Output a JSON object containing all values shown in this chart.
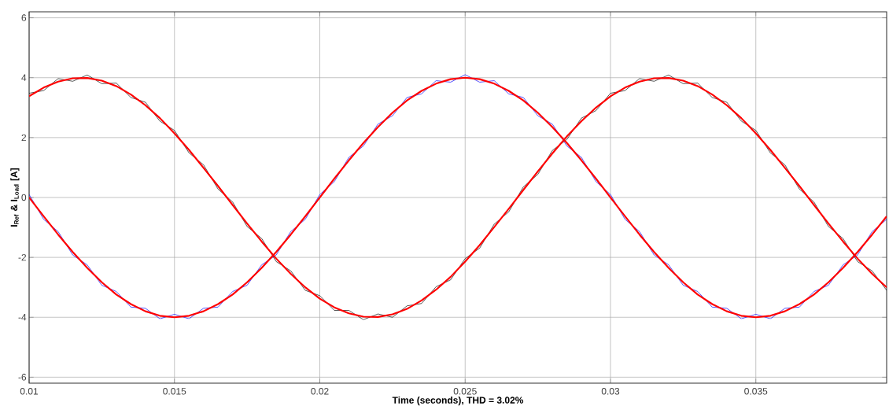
{
  "chart_data": {
    "type": "line",
    "xlabel": "Time (seconds), THD = 3.02%",
    "ylabel": "I$_{Ref}$ & I$_{Load}$ [A]",
    "x": [
      0.01,
      0.0105,
      0.011,
      0.0115,
      0.012,
      0.0125,
      0.013,
      0.0135,
      0.014,
      0.0145,
      0.015,
      0.0155,
      0.016,
      0.0165,
      0.017,
      0.0175,
      0.018,
      0.0185,
      0.019,
      0.0195,
      0.02,
      0.0205,
      0.021,
      0.0215,
      0.022,
      0.0225,
      0.023,
      0.0235,
      0.024,
      0.0245,
      0.025,
      0.0255,
      0.026,
      0.0265,
      0.027,
      0.0275,
      0.028,
      0.0285,
      0.029,
      0.0295,
      0.03,
      0.0305,
      0.031,
      0.0315,
      0.032,
      0.0325,
      0.033,
      0.0335,
      0.034,
      0.0345,
      0.035,
      0.0355,
      0.036,
      0.0365,
      0.037,
      0.0375,
      0.038,
      0.0385,
      0.039,
      0.0395
    ],
    "series": [
      {
        "color": "#000000",
        "values": [
          3.48,
          3.57,
          3.97,
          3.88,
          4.09,
          3.8,
          3.82,
          3.34,
          3.18,
          2.55,
          2.24,
          1.49,
          1.09,
          0.28,
          -0.15,
          -0.97,
          -1.37,
          -2.14,
          -2.45,
          -3.1,
          -3.28,
          -3.77,
          -3.77,
          -4.08,
          -3.89,
          -4.0,
          -3.62,
          -3.54,
          -2.98,
          -2.75,
          -2.04,
          -1.69,
          -0.89,
          -0.48,
          0.35,
          0.77,
          1.57,
          1.94,
          2.65,
          2.9,
          3.48,
          3.57,
          3.97,
          3.88,
          4.09,
          3.8,
          3.82,
          3.34,
          3.18,
          2.55,
          2.24,
          1.49,
          1.09,
          0.28,
          -0.15,
          -0.97,
          -1.37,
          -2.14,
          -2.45,
          -3.1
        ]
      },
      {
        "color": "#0000ff",
        "values": [
          0.1,
          -0.73,
          -1.14,
          -1.92,
          -2.25,
          -2.93,
          -3.14,
          -3.66,
          -3.7,
          -4.05,
          -3.9,
          -4.05,
          -3.7,
          -3.66,
          -3.14,
          -2.93,
          -2.25,
          -1.92,
          -1.14,
          -0.73,
          0.1,
          0.53,
          1.34,
          1.72,
          2.45,
          2.73,
          3.34,
          3.46,
          3.9,
          3.85,
          4.1,
          3.85,
          3.9,
          3.46,
          3.34,
          2.73,
          2.45,
          1.72,
          1.34,
          0.53,
          0.1,
          -0.73,
          -1.14,
          -1.92,
          -2.25,
          -2.93,
          -3.14,
          -3.66,
          -3.7,
          -4.05,
          -3.9,
          -4.05,
          -3.7,
          -3.66,
          -3.14,
          -2.93,
          -2.25,
          -1.92,
          -1.14,
          -0.73
        ]
      },
      {
        "color": "#ff0000",
        "values": [
          3.38,
          3.67,
          3.87,
          3.98,
          3.99,
          3.9,
          3.72,
          3.44,
          3.08,
          2.65,
          2.14,
          1.59,
          0.99,
          0.38,
          -0.25,
          -0.87,
          -1.47,
          -2.04,
          -2.55,
          -3.0,
          -3.38,
          -3.67,
          -3.87,
          -3.98,
          -3.99,
          -3.9,
          -3.72,
          -3.44,
          -3.08,
          -2.65,
          -2.14,
          -1.59,
          -0.99,
          -0.38,
          0.25,
          0.87,
          1.47,
          2.04,
          2.55,
          3.0,
          3.38,
          3.67,
          3.87,
          3.98,
          3.99,
          3.9,
          3.72,
          3.44,
          3.08,
          2.65,
          2.14,
          1.59,
          0.99,
          0.38,
          -0.25,
          -0.87,
          -1.47,
          -2.04,
          -2.55,
          -3.0
        ]
      },
      {
        "color": "#ff0000",
        "values": [
          0,
          -0.63,
          -1.24,
          -1.82,
          -2.35,
          -2.83,
          -3.24,
          -3.56,
          -3.8,
          -3.95,
          -4,
          -3.95,
          -3.8,
          -3.56,
          -3.24,
          -2.83,
          -2.35,
          -1.82,
          -1.24,
          -0.63,
          0,
          0.63,
          1.24,
          1.82,
          2.35,
          2.83,
          3.24,
          3.56,
          3.8,
          3.95,
          4,
          3.95,
          3.8,
          3.56,
          3.24,
          2.83,
          2.35,
          1.82,
          1.24,
          0.63,
          0,
          -0.63,
          -1.24,
          -1.82,
          -2.35,
          -2.83,
          -3.24,
          -3.56,
          -3.8,
          -3.95,
          -4,
          -3.95,
          -3.8,
          -3.56,
          -3.24,
          -2.83,
          -2.35,
          -1.82,
          -1.24,
          -0.63
        ]
      }
    ],
    "xlim": [
      0.01,
      0.0395
    ],
    "ylim": [
      -6.2,
      6.2
    ],
    "xticks": [
      0.01,
      0.015,
      0.02,
      0.025,
      0.03,
      0.035
    ],
    "yticks": [
      -6,
      -4,
      -2,
      0,
      2,
      4,
      6
    ],
    "grid": true,
    "marker": "none",
    "line_style": "solid"
  }
}
